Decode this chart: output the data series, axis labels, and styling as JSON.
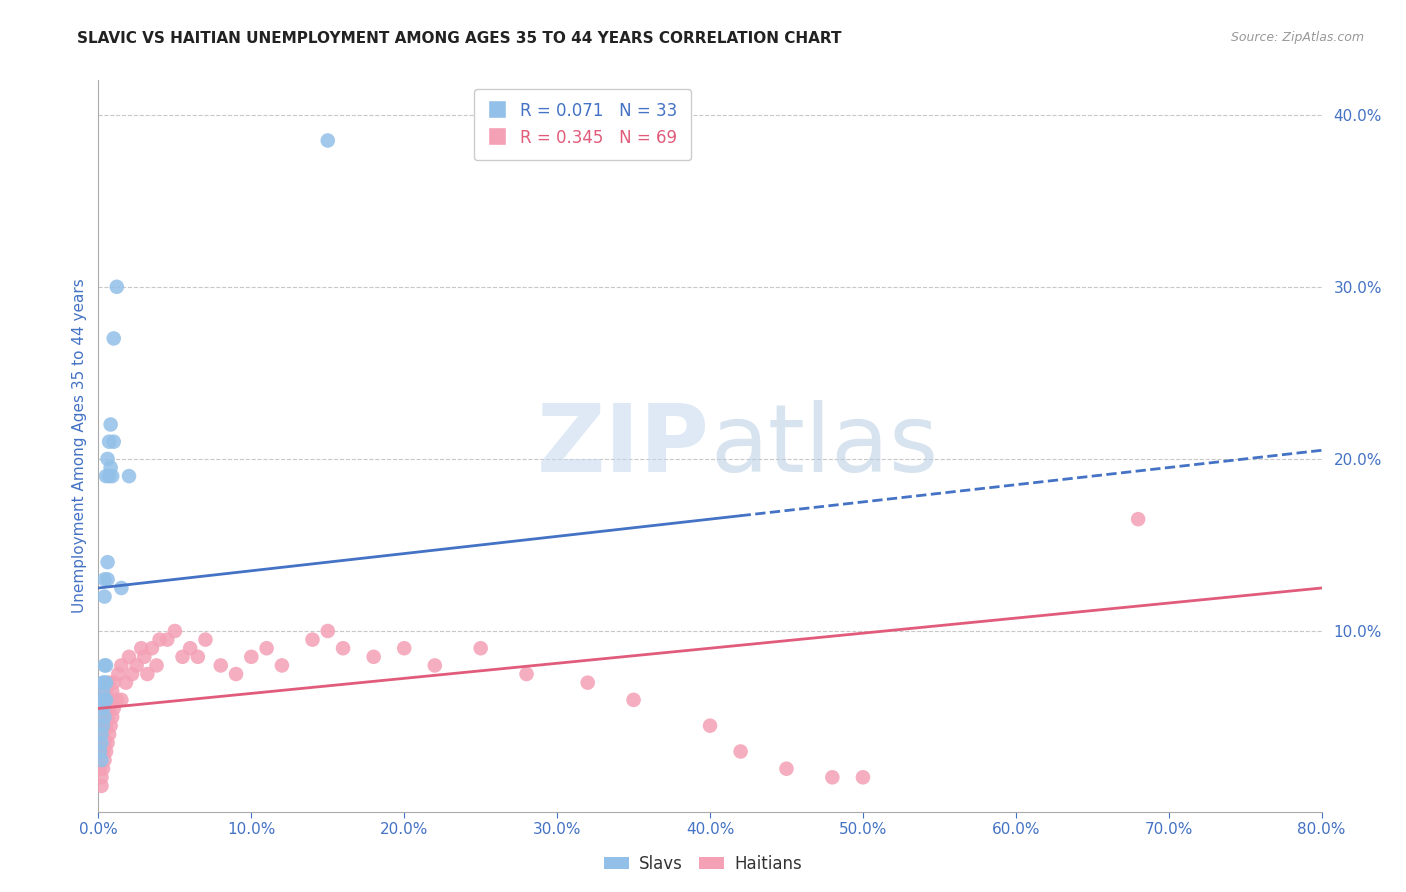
{
  "title": "SLAVIC VS HAITIAN UNEMPLOYMENT AMONG AGES 35 TO 44 YEARS CORRELATION CHART",
  "source": "Source: ZipAtlas.com",
  "ylabel": "Unemployment Among Ages 35 to 44 years",
  "xlim": [
    0.0,
    0.8
  ],
  "ylim": [
    -0.005,
    0.42
  ],
  "xticks": [
    0.0,
    0.1,
    0.2,
    0.3,
    0.4,
    0.5,
    0.6,
    0.7,
    0.8
  ],
  "yticks_right": [
    0.1,
    0.2,
    0.3,
    0.4
  ],
  "grid_color": "#c8c8c8",
  "watermark_zip": "ZIP",
  "watermark_atlas": "atlas",
  "slavs_color": "#92C0E8",
  "haitians_color": "#F4A0B5",
  "slavs_line_color": "#4472C4",
  "haitians_line_color": "#E05C7A",
  "slavs_R": 0.071,
  "slavs_N": 33,
  "haitians_R": 0.345,
  "haitians_N": 69,
  "slavs_x": [
    0.001,
    0.002,
    0.002,
    0.002,
    0.003,
    0.003,
    0.003,
    0.003,
    0.003,
    0.004,
    0.004,
    0.004,
    0.004,
    0.004,
    0.004,
    0.005,
    0.005,
    0.005,
    0.005,
    0.006,
    0.006,
    0.006,
    0.007,
    0.007,
    0.008,
    0.008,
    0.009,
    0.01,
    0.01,
    0.012,
    0.015,
    0.02,
    0.15
  ],
  "slavs_y": [
    0.03,
    0.025,
    0.035,
    0.04,
    0.045,
    0.055,
    0.06,
    0.065,
    0.07,
    0.05,
    0.06,
    0.07,
    0.08,
    0.12,
    0.13,
    0.06,
    0.07,
    0.08,
    0.19,
    0.13,
    0.14,
    0.2,
    0.19,
    0.21,
    0.195,
    0.22,
    0.19,
    0.21,
    0.27,
    0.3,
    0.125,
    0.19,
    0.385
  ],
  "haitians_x": [
    0.001,
    0.002,
    0.002,
    0.003,
    0.003,
    0.003,
    0.003,
    0.004,
    0.004,
    0.004,
    0.004,
    0.005,
    0.005,
    0.005,
    0.005,
    0.006,
    0.006,
    0.006,
    0.007,
    0.007,
    0.007,
    0.008,
    0.008,
    0.009,
    0.009,
    0.01,
    0.01,
    0.012,
    0.013,
    0.015,
    0.015,
    0.018,
    0.02,
    0.022,
    0.025,
    0.028,
    0.03,
    0.032,
    0.035,
    0.038,
    0.04,
    0.045,
    0.05,
    0.055,
    0.06,
    0.065,
    0.07,
    0.08,
    0.09,
    0.1,
    0.11,
    0.12,
    0.14,
    0.15,
    0.16,
    0.18,
    0.2,
    0.22,
    0.25,
    0.28,
    0.32,
    0.35,
    0.4,
    0.42,
    0.45,
    0.48,
    0.5,
    0.68,
    0.002
  ],
  "haitians_y": [
    0.02,
    0.015,
    0.035,
    0.02,
    0.03,
    0.04,
    0.05,
    0.025,
    0.035,
    0.045,
    0.06,
    0.03,
    0.045,
    0.055,
    0.065,
    0.035,
    0.05,
    0.06,
    0.04,
    0.055,
    0.07,
    0.045,
    0.06,
    0.05,
    0.065,
    0.055,
    0.07,
    0.06,
    0.075,
    0.06,
    0.08,
    0.07,
    0.085,
    0.075,
    0.08,
    0.09,
    0.085,
    0.075,
    0.09,
    0.08,
    0.095,
    0.095,
    0.1,
    0.085,
    0.09,
    0.085,
    0.095,
    0.08,
    0.075,
    0.085,
    0.09,
    0.08,
    0.095,
    0.1,
    0.09,
    0.085,
    0.09,
    0.08,
    0.09,
    0.075,
    0.07,
    0.06,
    0.045,
    0.03,
    0.02,
    0.015,
    0.015,
    0.165,
    0.01
  ],
  "slavs_trend_x0": 0.0,
  "slavs_trend_x_solid_end": 0.42,
  "slavs_trend_x_dash_end": 0.8,
  "slavs_trend_y0": 0.125,
  "slavs_trend_y_end": 0.205,
  "haitians_trend_x0": 0.0,
  "haitians_trend_x_end": 0.8,
  "haitians_trend_y0": 0.055,
  "haitians_trend_y_end": 0.125,
  "background_color": "#ffffff",
  "title_fontsize": 11,
  "tick_label_color": "#4472C4"
}
